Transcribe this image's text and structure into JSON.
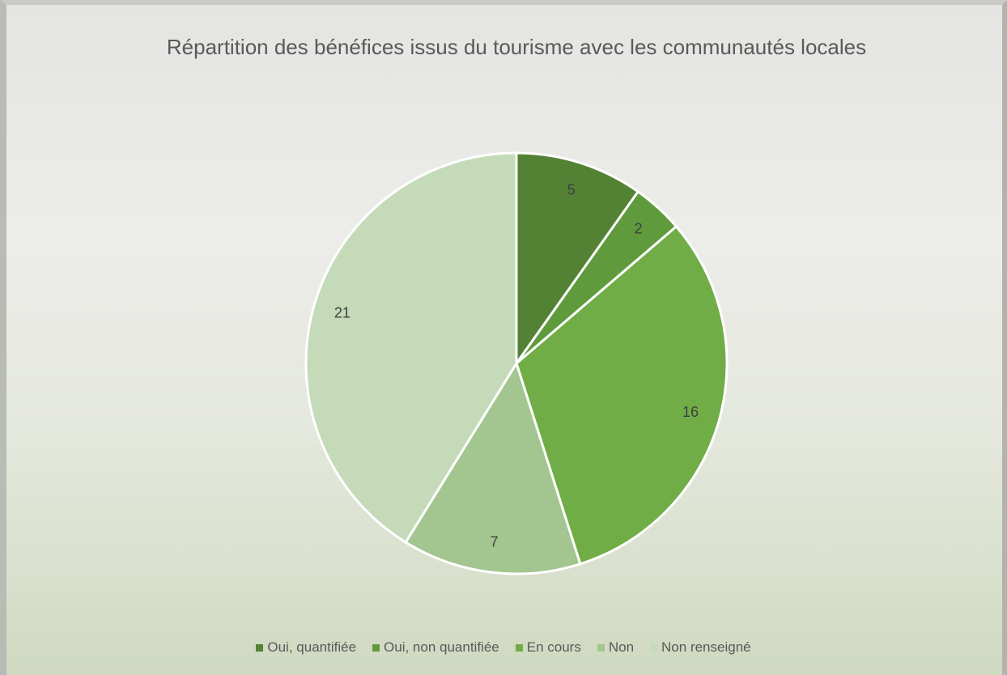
{
  "chart_data": {
    "type": "pie",
    "title": "Répartition des bénéfices issus du tourisme avec les communautés locales",
    "categories": [
      "Oui, quantifiée",
      "Oui, non quantifiée",
      "En cours",
      "Non",
      "Non renseigné"
    ],
    "values": [
      5,
      2,
      16,
      7,
      21
    ],
    "colors": [
      "#548235",
      "#5f9a3c",
      "#70ad47",
      "#a3c58f",
      "#c4dab9"
    ],
    "legend": "bottom"
  }
}
